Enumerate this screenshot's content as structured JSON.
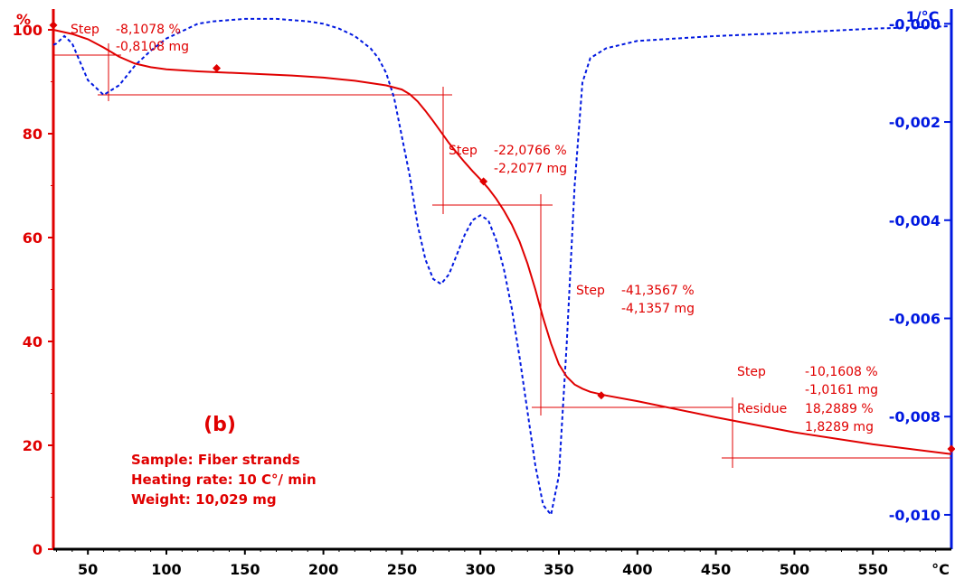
{
  "chart_data": {
    "type": "line",
    "title": "",
    "panel_label": "(b)",
    "info_lines": [
      "Sample: Fiber strands",
      "Heating rate: 10 C°/ min",
      "Weight: 10,029 mg"
    ],
    "x_axis": {
      "unit_label": "°C",
      "range": [
        28,
        600
      ],
      "ticks": [
        50,
        100,
        150,
        200,
        250,
        300,
        350,
        400,
        450,
        500,
        550
      ],
      "tick_labels": [
        "50",
        "100",
        "150",
        "200",
        "250",
        "300",
        "350",
        "400",
        "450",
        "500",
        "550"
      ]
    },
    "y_left": {
      "unit_label": "%",
      "range": [
        0,
        104
      ],
      "ticks": [
        0,
        20,
        40,
        60,
        80,
        100
      ],
      "tick_labels": [
        "0",
        "20",
        "40",
        "60",
        "80",
        "100"
      ]
    },
    "y_right": {
      "unit_label": "1/°C",
      "range": [
        -0.0107,
        0.0003
      ],
      "ticks": [
        0.0,
        -0.002,
        -0.004,
        -0.006,
        -0.008,
        -0.01
      ],
      "tick_labels": [
        "-0,000",
        "-0,002",
        "-0,004",
        "-0,006",
        "-0,008",
        "-0,010"
      ]
    },
    "series": [
      {
        "axis": "left",
        "style": "solid",
        "color": "#e00000",
        "x": [
          28,
          40,
          50,
          60,
          70,
          80,
          90,
          100,
          120,
          150,
          180,
          200,
          220,
          240,
          250,
          255,
          260,
          265,
          270,
          275,
          280,
          285,
          290,
          295,
          300,
          305,
          310,
          315,
          320,
          325,
          330,
          335,
          340,
          345,
          350,
          355,
          360,
          365,
          370,
          380,
          400,
          450,
          500,
          550,
          600
        ],
        "y": [
          100,
          99.2,
          98.2,
          96.6,
          94.8,
          93.5,
          92.8,
          92.4,
          92.0,
          91.6,
          91.2,
          90.8,
          90.2,
          89.3,
          88.5,
          87.6,
          86.2,
          84.4,
          82.4,
          80.3,
          78.2,
          76.3,
          74.5,
          72.8,
          71.2,
          69.5,
          67.5,
          65.2,
          62.5,
          59.2,
          55.0,
          50.0,
          44.5,
          39.6,
          35.6,
          33.2,
          31.7,
          30.9,
          30.3,
          29.6,
          28.5,
          25.4,
          22.5,
          20.2,
          18.3
        ]
      },
      {
        "axis": "right",
        "style": "dashed",
        "color": "#0018e0",
        "x": [
          28,
          30,
          35,
          40,
          50,
          60,
          70,
          80,
          90,
          100,
          110,
          120,
          130,
          150,
          170,
          190,
          200,
          210,
          220,
          230,
          235,
          240,
          245,
          250,
          255,
          260,
          265,
          270,
          275,
          280,
          285,
          290,
          295,
          300,
          305,
          310,
          315,
          320,
          325,
          330,
          335,
          340,
          345,
          350,
          355,
          360,
          365,
          370,
          380,
          400,
          450,
          500,
          550,
          600
        ],
        "y": [
          -0.00043,
          -0.0004,
          -0.00025,
          -0.0004,
          -0.00115,
          -0.00145,
          -0.00125,
          -0.00085,
          -0.00055,
          -0.0003,
          -0.00015,
          0.0,
          5e-05,
          0.0001,
          0.0001,
          5e-05,
          0.0,
          -0.0001,
          -0.00025,
          -0.0005,
          -0.0007,
          -0.001,
          -0.0015,
          -0.0023,
          -0.0031,
          -0.0041,
          -0.0048,
          -0.0052,
          -0.0053,
          -0.0051,
          -0.0047,
          -0.0043,
          -0.004,
          -0.0039,
          -0.004,
          -0.0044,
          -0.005,
          -0.0058,
          -0.0068,
          -0.0079,
          -0.009,
          -0.0098,
          -0.01,
          -0.0092,
          -0.0065,
          -0.0033,
          -0.0012,
          -0.0007,
          -0.0005,
          -0.00035,
          -0.00025,
          -0.00018,
          -0.0001,
          -5e-05
        ]
      }
    ],
    "annotations": [
      {
        "text": [
          "Step",
          "-8,1078 %",
          "-0,8108 mg"
        ]
      },
      {
        "text": [
          "Step",
          "-22,0766 %",
          "-2,2077 mg"
        ]
      },
      {
        "text": [
          "Step",
          "-41,3567 %",
          "-4,1357 mg"
        ]
      },
      {
        "text": [
          "Step",
          "-10,1608 %",
          "-1,0161 mg"
        ]
      },
      {
        "text": [
          "Residue",
          "18,2889 %",
          "1,8289 mg"
        ]
      }
    ],
    "markers": [
      {
        "x": 28,
        "y": 100.9
      },
      {
        "x": 132,
        "y": 92.6
      },
      {
        "x": 302,
        "y": 70.8
      },
      {
        "x": 377,
        "y": 29.6
      },
      {
        "x": 600,
        "y": 19.3
      }
    ],
    "colors": {
      "mass": "#e00000",
      "derivative": "#0018e0"
    }
  }
}
